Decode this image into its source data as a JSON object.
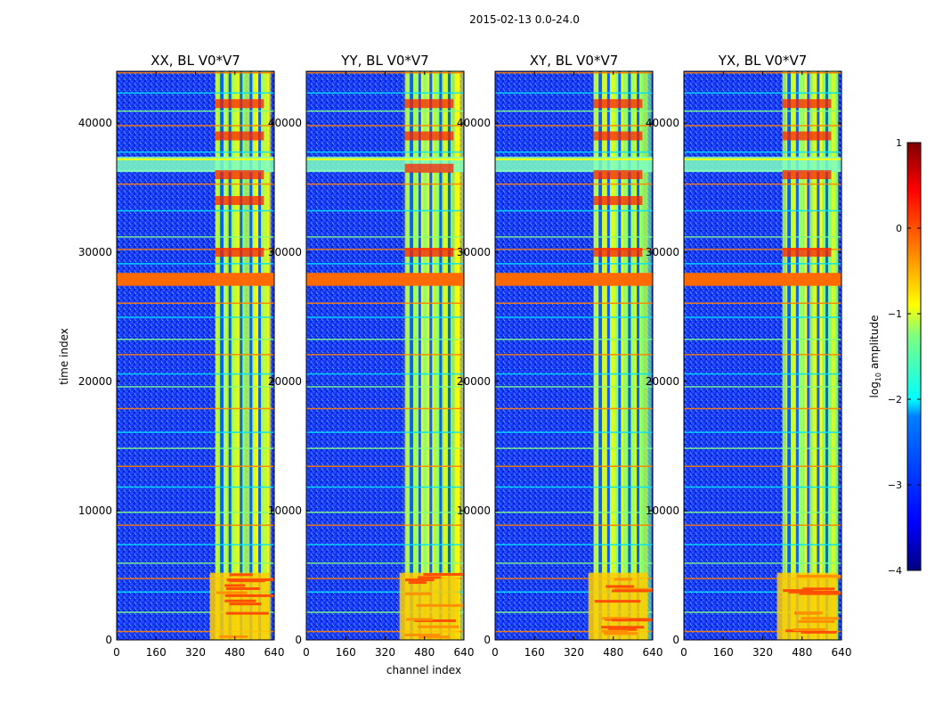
{
  "figure": {
    "suptitle": "2015-02-13 0.0-24.0",
    "xlabel": "channel index",
    "ylabel": "time index"
  },
  "colorbar": {
    "label_prefix": "log",
    "label_sub": "10",
    "label_suffix": " amplitude",
    "range": [
      -4,
      1
    ],
    "ticks": [
      1,
      0,
      -1,
      -2,
      -3,
      -4
    ],
    "tick_labels": [
      "1",
      "0",
      "−1",
      "−2",
      "−3",
      "−4"
    ],
    "colormap": "jet",
    "colors": [
      "#00007f",
      "#0000ff",
      "#007fff",
      "#00ffff",
      "#7fff7f",
      "#ffff00",
      "#ff7f00",
      "#ff0000",
      "#7f0000"
    ]
  },
  "chart_data": [
    {
      "type": "heatmap",
      "title": "XX, BL V0*V7",
      "xlabel": "channel index",
      "ylabel": "time index",
      "xlim": [
        0,
        640
      ],
      "ylim": [
        0,
        44000
      ],
      "x_ticks": [
        0,
        160,
        320,
        480,
        640
      ],
      "y_ticks": [
        0,
        10000,
        20000,
        30000,
        40000
      ],
      "z_label": "log10 amplitude",
      "background_level": -3.2,
      "rfi_channel_band": [
        400,
        620
      ],
      "rfi_stripes": [
        {
          "x": 420,
          "w": 14
        },
        {
          "x": 455,
          "w": 9
        },
        {
          "x": 500,
          "w": 8
        },
        {
          "x": 540,
          "w": 10
        },
        {
          "x": 575,
          "w": 8
        }
      ],
      "saturated_time_band": [
        27400,
        28400
      ],
      "strong_time_band": [
        36200,
        37400
      ],
      "low_time_burst": [
        0,
        5200
      ],
      "hot_spots": [
        {
          "t": 41500
        },
        {
          "t": 39000
        },
        {
          "t": 36000
        },
        {
          "t": 34000
        },
        {
          "t": 30000
        }
      ]
    },
    {
      "type": "heatmap",
      "title": "YY, BL V0*V7",
      "xlabel": "channel index",
      "ylabel": "time index",
      "xlim": [
        0,
        640
      ],
      "ylim": [
        0,
        44000
      ],
      "x_ticks": [
        0,
        160,
        320,
        480,
        640
      ],
      "y_ticks": [
        0,
        10000,
        20000,
        30000,
        40000
      ],
      "z_label": "log10 amplitude",
      "background_level": -3.0,
      "rfi_channel_band": [
        400,
        620
      ],
      "rfi_stripes": [
        {
          "x": 420,
          "w": 14
        },
        {
          "x": 455,
          "w": 9
        },
        {
          "x": 500,
          "w": 8
        },
        {
          "x": 540,
          "w": 10
        },
        {
          "x": 575,
          "w": 8
        }
      ],
      "saturated_time_band": [
        27400,
        28400
      ],
      "strong_time_band": [
        36200,
        37400
      ],
      "low_time_burst": [
        0,
        5200
      ],
      "hot_spots": [
        {
          "t": 41500
        },
        {
          "t": 39000
        },
        {
          "t": 36500
        },
        {
          "t": 30000
        }
      ]
    },
    {
      "type": "heatmap",
      "title": "XY, BL V0*V7",
      "xlabel": "channel index",
      "ylabel": "time index",
      "xlim": [
        0,
        640
      ],
      "ylim": [
        0,
        44000
      ],
      "x_ticks": [
        0,
        160,
        320,
        480,
        640
      ],
      "y_ticks": [
        0,
        10000,
        20000,
        30000,
        40000
      ],
      "z_label": "log10 amplitude",
      "background_level": -3.2,
      "rfi_channel_band": [
        400,
        620
      ],
      "rfi_stripes": [
        {
          "x": 420,
          "w": 14
        },
        {
          "x": 455,
          "w": 9
        },
        {
          "x": 500,
          "w": 8
        },
        {
          "x": 540,
          "w": 10
        },
        {
          "x": 575,
          "w": 8
        }
      ],
      "saturated_time_band": [
        27400,
        28400
      ],
      "strong_time_band": [
        36200,
        37400
      ],
      "low_time_burst": [
        0,
        5200
      ],
      "hot_spots": [
        {
          "t": 41500
        },
        {
          "t": 39000
        },
        {
          "t": 36000
        },
        {
          "t": 34000
        },
        {
          "t": 30000
        }
      ]
    },
    {
      "type": "heatmap",
      "title": "YX, BL V0*V7",
      "xlabel": "channel index",
      "ylabel": "time index",
      "xlim": [
        0,
        640
      ],
      "ylim": [
        0,
        44000
      ],
      "x_ticks": [
        0,
        160,
        320,
        480,
        640
      ],
      "y_ticks": [
        0,
        10000,
        20000,
        30000,
        40000
      ],
      "z_label": "log10 amplitude",
      "background_level": -3.2,
      "rfi_channel_band": [
        400,
        620
      ],
      "rfi_stripes": [
        {
          "x": 420,
          "w": 14
        },
        {
          "x": 455,
          "w": 9
        },
        {
          "x": 500,
          "w": 8
        },
        {
          "x": 540,
          "w": 10
        },
        {
          "x": 575,
          "w": 8
        }
      ],
      "saturated_time_band": [
        27400,
        28400
      ],
      "strong_time_band": [
        36200,
        37400
      ],
      "low_time_burst": [
        0,
        5200
      ],
      "hot_spots": [
        {
          "t": 41500
        },
        {
          "t": 39000
        },
        {
          "t": 36000
        },
        {
          "t": 30000
        }
      ]
    }
  ]
}
